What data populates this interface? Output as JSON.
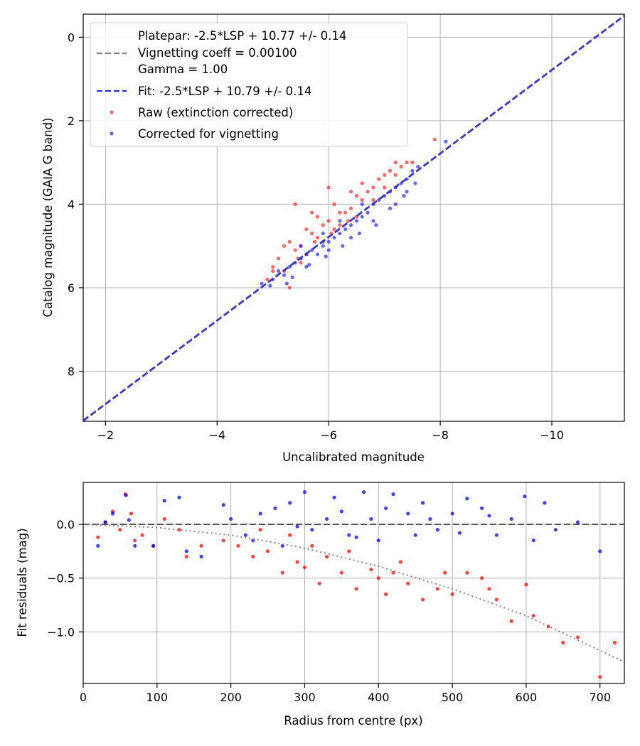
{
  "chart_data": [
    {
      "type": "scatter",
      "xlabel": "Uncalibrated magnitude",
      "ylabel": "Catalog magnitude (GAIA G band)",
      "xlim": [
        -1.6,
        -11.3
      ],
      "ylim": [
        9.2,
        -0.55
      ],
      "x_inverted": true,
      "y_inverted": true,
      "grid": true,
      "xticks": [
        -2,
        -4,
        -6,
        -8,
        -10
      ],
      "xtick_labels": [
        "−2",
        "−4",
        "−6",
        "−8",
        "−10"
      ],
      "yticks": [
        0,
        2,
        4,
        6,
        8
      ],
      "ytick_labels": [
        "0",
        "2",
        "4",
        "6",
        "8"
      ],
      "legend_position": "top-left",
      "legend": {
        "platepar_line1": "Platepar: -2.5*LSP + 10.77 +/- 0.14",
        "platepar_line2": "Vignetting coeff = 0.00100",
        "platepar_line3": "Gamma = 1.00",
        "fit": "Fit: -2.5*LSP + 10.79 +/- 0.14",
        "raw": "Raw (extinction corrected)",
        "corrected": "Corrected for vignetting"
      },
      "lines": [
        {
          "name": "Platepar fit",
          "slope": 1.0,
          "intercept": 10.77,
          "style": "dashed",
          "color": "#808080"
        },
        {
          "name": "Fit",
          "slope": 1.0,
          "intercept": 10.79,
          "style": "dashed",
          "color": "#2a2ad6"
        }
      ],
      "series": [
        {
          "name": "Raw (extinction corrected)",
          "color": "#ff0000",
          "points": [
            [
              -5.0,
              5.6
            ],
            [
              -5.1,
              5.3
            ],
            [
              -5.2,
              5.0
            ],
            [
              -5.3,
              4.9
            ],
            [
              -5.4,
              5.1
            ],
            [
              -5.5,
              5.4
            ],
            [
              -5.6,
              4.6
            ],
            [
              -5.7,
              4.7
            ],
            [
              -5.8,
              4.8
            ],
            [
              -5.9,
              4.5
            ],
            [
              -6.0,
              4.4
            ],
            [
              -6.1,
              4.6
            ],
            [
              -6.2,
              4.5
            ],
            [
              -6.3,
              4.2
            ],
            [
              -6.4,
              4.1
            ],
            [
              -6.5,
              3.8
            ],
            [
              -6.6,
              3.9
            ],
            [
              -6.7,
              3.7
            ],
            [
              -6.8,
              3.6
            ],
            [
              -6.9,
              3.4
            ],
            [
              -7.0,
              3.3
            ],
            [
              -7.1,
              3.2
            ],
            [
              -7.2,
              3.3
            ],
            [
              -7.3,
              3.1
            ],
            [
              -7.4,
              3.0
            ],
            [
              -7.5,
              3.0
            ],
            [
              -5.5,
              5.0
            ],
            [
              -5.8,
              4.3
            ],
            [
              -6.0,
              3.6
            ],
            [
              -5.4,
              4.0
            ],
            [
              -4.9,
              5.8
            ],
            [
              -5.3,
              6.0
            ],
            [
              -5.0,
              5.5
            ],
            [
              -5.6,
              5.2
            ],
            [
              -5.9,
              4.9
            ],
            [
              -6.2,
              4.2
            ],
            [
              -6.5,
              4.3
            ],
            [
              -6.8,
              3.9
            ],
            [
              -7.0,
              3.6
            ],
            [
              -5.7,
              4.2
            ],
            [
              -6.1,
              4.0
            ],
            [
              -6.4,
              3.7
            ],
            [
              -7.9,
              2.45
            ],
            [
              -6.6,
              3.5
            ],
            [
              -7.2,
              3.0
            ],
            [
              -5.2,
              5.6
            ],
            [
              -5.45,
              5.3
            ],
            [
              -5.75,
              4.9
            ],
            [
              -6.05,
              4.7
            ],
            [
              -6.35,
              4.4
            ]
          ]
        },
        {
          "name": "Corrected for vignetting",
          "color": "#0000ff",
          "points": [
            [
              -4.8,
              5.9
            ],
            [
              -5.0,
              5.8
            ],
            [
              -5.2,
              5.7
            ],
            [
              -5.3,
              5.5
            ],
            [
              -5.4,
              5.4
            ],
            [
              -5.5,
              5.3
            ],
            [
              -5.6,
              5.2
            ],
            [
              -5.7,
              5.1
            ],
            [
              -5.8,
              5.2
            ],
            [
              -5.9,
              5.0
            ],
            [
              -6.0,
              4.9
            ],
            [
              -6.1,
              4.8
            ],
            [
              -6.2,
              4.7
            ],
            [
              -6.3,
              4.6
            ],
            [
              -6.4,
              4.5
            ],
            [
              -6.5,
              4.4
            ],
            [
              -6.6,
              4.3
            ],
            [
              -6.7,
              4.2
            ],
            [
              -6.8,
              4.0
            ],
            [
              -6.9,
              3.9
            ],
            [
              -7.0,
              3.8
            ],
            [
              -7.1,
              3.7
            ],
            [
              -7.2,
              3.6
            ],
            [
              -7.3,
              3.5
            ],
            [
              -7.4,
              3.4
            ],
            [
              -7.5,
              3.2
            ],
            [
              -7.6,
              3.1
            ],
            [
              -8.1,
              2.5
            ],
            [
              -5.5,
              5.0
            ],
            [
              -5.9,
              4.7
            ],
            [
              -6.2,
              4.4
            ],
            [
              -6.6,
              4.0
            ],
            [
              -5.1,
              5.6
            ],
            [
              -5.6,
              5.5
            ],
            [
              -6.0,
              5.1
            ],
            [
              -6.4,
              4.8
            ],
            [
              -6.8,
              4.4
            ],
            [
              -7.2,
              4.0
            ],
            [
              -7.4,
              3.7
            ],
            [
              -5.35,
              5.75
            ],
            [
              -5.65,
              5.45
            ],
            [
              -5.95,
              5.25
            ],
            [
              -6.25,
              5.0
            ],
            [
              -6.55,
              4.7
            ],
            [
              -6.85,
              4.5
            ],
            [
              -7.1,
              4.1
            ],
            [
              -7.35,
              3.8
            ],
            [
              -7.55,
              3.5
            ],
            [
              -4.95,
              5.95
            ],
            [
              -5.25,
              5.9
            ]
          ]
        }
      ]
    },
    {
      "type": "scatter",
      "xlabel": "Radius from centre (px)",
      "ylabel": "Fit residuals (mag)",
      "xlim": [
        0,
        733
      ],
      "ylim": [
        -1.48,
        0.39
      ],
      "grid": true,
      "xticks": [
        0,
        100,
        200,
        300,
        400,
        500,
        600,
        700
      ],
      "xtick_labels": [
        "0",
        "100",
        "200",
        "300",
        "400",
        "500",
        "600",
        "700"
      ],
      "yticks": [
        0.0,
        -0.5,
        -1.0
      ],
      "ytick_labels": [
        "0.0",
        "−0.5",
        "−1.0"
      ],
      "reference_line": {
        "y": 0.0,
        "style": "dashed",
        "color": "#404040"
      },
      "model_curve": {
        "style": "dotted",
        "color": "#808080",
        "points": [
          [
            0,
            0.0
          ],
          [
            100,
            -0.03
          ],
          [
            200,
            -0.1
          ],
          [
            300,
            -0.22
          ],
          [
            400,
            -0.39
          ],
          [
            500,
            -0.6
          ],
          [
            600,
            -0.85
          ],
          [
            733,
            -1.28
          ]
        ]
      },
      "series": [
        {
          "name": "Raw (extinction corrected)",
          "color": "#ff0000",
          "points": [
            [
              20,
              -0.12
            ],
            [
              30,
              0.02
            ],
            [
              40,
              0.12
            ],
            [
              50,
              -0.05
            ],
            [
              57,
              0.28
            ],
            [
              65,
              0.1
            ],
            [
              70,
              -0.15
            ],
            [
              80,
              -0.1
            ],
            [
              95,
              -0.2
            ],
            [
              110,
              0.05
            ],
            [
              130,
              -0.05
            ],
            [
              140,
              -0.3
            ],
            [
              160,
              -0.2
            ],
            [
              190,
              -0.15
            ],
            [
              210,
              -0.2
            ],
            [
              230,
              -0.3
            ],
            [
              250,
              -0.25
            ],
            [
              270,
              -0.45
            ],
            [
              290,
              -0.35
            ],
            [
              300,
              -0.4
            ],
            [
              320,
              -0.55
            ],
            [
              330,
              -0.3
            ],
            [
              350,
              -0.45
            ],
            [
              370,
              -0.6
            ],
            [
              390,
              -0.42
            ],
            [
              400,
              -0.5
            ],
            [
              410,
              -0.65
            ],
            [
              420,
              -0.45
            ],
            [
              440,
              -0.55
            ],
            [
              460,
              -0.7
            ],
            [
              480,
              -0.6
            ],
            [
              500,
              -0.65
            ],
            [
              520,
              -0.45
            ],
            [
              540,
              -0.5
            ],
            [
              560,
              -0.7
            ],
            [
              580,
              -0.9
            ],
            [
              600,
              -0.56
            ],
            [
              610,
              -0.85
            ],
            [
              630,
              -0.95
            ],
            [
              650,
              -1.1
            ],
            [
              670,
              -1.05
            ],
            [
              700,
              -1.42
            ],
            [
              720,
              -1.1
            ],
            [
              240,
              -0.05
            ],
            [
              280,
              -0.1
            ],
            [
              310,
              -0.2
            ],
            [
              360,
              -0.25
            ],
            [
              430,
              -0.35
            ],
            [
              490,
              -0.45
            ],
            [
              550,
              -0.6
            ]
          ]
        },
        {
          "name": "Corrected for vignetting",
          "color": "#0000ff",
          "points": [
            [
              20,
              -0.2
            ],
            [
              30,
              0.02
            ],
            [
              40,
              0.1
            ],
            [
              58,
              0.27
            ],
            [
              62,
              0.04
            ],
            [
              70,
              -0.2
            ],
            [
              95,
              -0.2
            ],
            [
              110,
              0.22
            ],
            [
              130,
              0.25
            ],
            [
              140,
              -0.25
            ],
            [
              160,
              -0.3
            ],
            [
              190,
              0.18
            ],
            [
              200,
              0.05
            ],
            [
              220,
              -0.1
            ],
            [
              240,
              0.1
            ],
            [
              260,
              0.15
            ],
            [
              280,
              0.2
            ],
            [
              300,
              0.3
            ],
            [
              310,
              -0.05
            ],
            [
              330,
              0.05
            ],
            [
              340,
              0.25
            ],
            [
              360,
              -0.1
            ],
            [
              380,
              0.3
            ],
            [
              390,
              0.05
            ],
            [
              400,
              -0.15
            ],
            [
              420,
              0.28
            ],
            [
              440,
              0.1
            ],
            [
              460,
              0.2
            ],
            [
              480,
              -0.05
            ],
            [
              500,
              0.1
            ],
            [
              520,
              0.24
            ],
            [
              540,
              0.15
            ],
            [
              560,
              -0.1
            ],
            [
              580,
              0.05
            ],
            [
              598,
              0.26
            ],
            [
              610,
              -0.15
            ],
            [
              625,
              0.2
            ],
            [
              640,
              -0.05
            ],
            [
              670,
              0.02
            ],
            [
              700,
              -0.25
            ],
            [
              230,
              -0.15
            ],
            [
              270,
              -0.2
            ],
            [
              290,
              -0.02
            ],
            [
              350,
              0.12
            ],
            [
              370,
              -0.12
            ],
            [
              410,
              0.15
            ],
            [
              450,
              -0.1
            ],
            [
              470,
              0.05
            ],
            [
              510,
              -0.08
            ],
            [
              550,
              0.08
            ]
          ]
        }
      ]
    }
  ]
}
